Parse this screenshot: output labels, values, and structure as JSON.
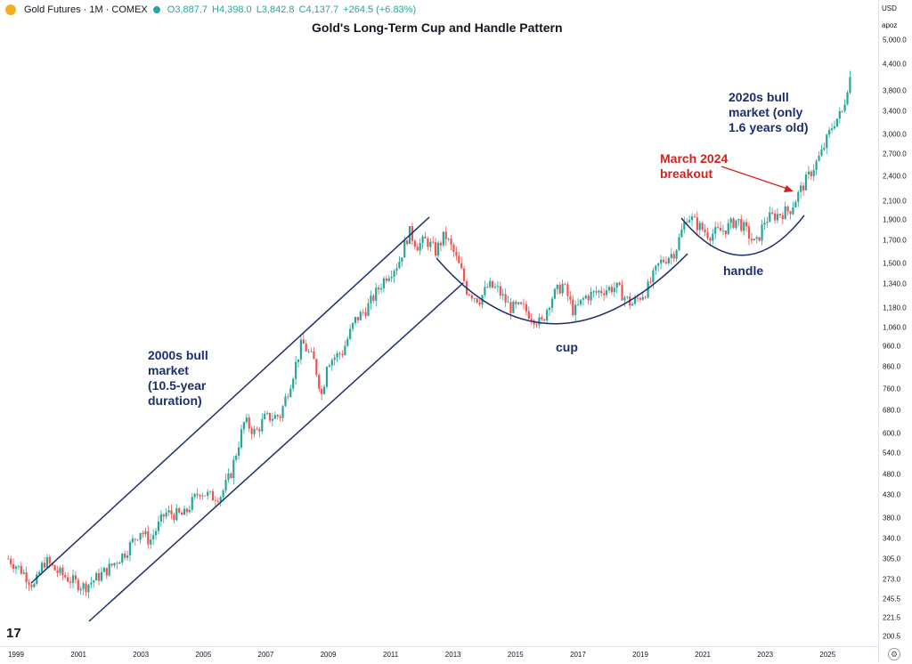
{
  "legend": {
    "symbol": "Gold Futures · 1M · COMEX",
    "open": "O3,887.7",
    "high": "H4,398.0",
    "low": "L3,842.8",
    "close": "C4,137.7",
    "change": "+264.5 (+6.83%)",
    "up_color": "#26a69a",
    "down_color": "#ef5350"
  },
  "axis": {
    "currency": "USD",
    "mode": "apoz"
  },
  "chart_data": {
    "type": "candlestick",
    "title": "Gold's Long-Term Cup and Handle Pattern",
    "scale": "log",
    "ylim": [
      195,
      5100
    ],
    "xlim": [
      1998.75,
      2026.6
    ],
    "y_ticks": [
      "5,000.0",
      "4,400.0",
      "3,800.0",
      "3,400.0",
      "3,000.0",
      "2,700.0",
      "2,400.0",
      "2,100.0",
      "1,900.0",
      "1,700.0",
      "1,500.0",
      "1,340.0",
      "1,180.0",
      "1,060.0",
      "960.0",
      "860.0",
      "760.0",
      "680.0",
      "600.0",
      "540.0",
      "480.0",
      "430.0",
      "380.0",
      "340.0",
      "305.0",
      "273.0",
      "245.5",
      "221.5",
      "200.5"
    ],
    "x_ticks": [
      "1999",
      "2001",
      "2003",
      "2005",
      "2007",
      "2009",
      "2011",
      "2013",
      "2015",
      "2017",
      "2019",
      "2021",
      "2023",
      "2025"
    ],
    "anchors": [
      [
        1998.75,
        305
      ],
      [
        1999.2,
        285
      ],
      [
        1999.6,
        262
      ],
      [
        1999.8,
        290
      ],
      [
        1999.95,
        302
      ],
      [
        2000.3,
        285
      ],
      [
        2000.9,
        268
      ],
      [
        2001.2,
        262
      ],
      [
        2001.6,
        275
      ],
      [
        2002.0,
        290
      ],
      [
        2002.5,
        315
      ],
      [
        2003.0,
        355
      ],
      [
        2003.3,
        335
      ],
      [
        2003.8,
        390
      ],
      [
        2004.4,
        385
      ],
      [
        2004.9,
        440
      ],
      [
        2005.3,
        425
      ],
      [
        2005.6,
        430
      ],
      [
        2005.9,
        480
      ],
      [
        2006.35,
        640
      ],
      [
        2006.7,
        600
      ],
      [
        2007.0,
        650
      ],
      [
        2007.5,
        660
      ],
      [
        2007.9,
        820
      ],
      [
        2008.2,
        980
      ],
      [
        2008.6,
        880
      ],
      [
        2008.85,
        730
      ],
      [
        2009.0,
        880
      ],
      [
        2009.5,
        930
      ],
      [
        2009.9,
        1100
      ],
      [
        2010.3,
        1180
      ],
      [
        2010.9,
        1400
      ],
      [
        2011.3,
        1500
      ],
      [
        2011.65,
        1780
      ],
      [
        2011.9,
        1650
      ],
      [
        2012.2,
        1700
      ],
      [
        2012.5,
        1600
      ],
      [
        2012.8,
        1750
      ],
      [
        2013.1,
        1580
      ],
      [
        2013.35,
        1420
      ],
      [
        2013.5,
        1300
      ],
      [
        2013.9,
        1230
      ],
      [
        2014.2,
        1330
      ],
      [
        2014.5,
        1300
      ],
      [
        2014.9,
        1180
      ],
      [
        2015.3,
        1180
      ],
      [
        2015.9,
        1080
      ],
      [
        2016.2,
        1240
      ],
      [
        2016.6,
        1340
      ],
      [
        2016.95,
        1150
      ],
      [
        2017.3,
        1250
      ],
      [
        2017.9,
        1300
      ],
      [
        2018.3,
        1320
      ],
      [
        2018.8,
        1200
      ],
      [
        2019.3,
        1300
      ],
      [
        2019.7,
        1500
      ],
      [
        2020.2,
        1600
      ],
      [
        2020.6,
        1950
      ],
      [
        2020.9,
        1850
      ],
      [
        2021.3,
        1750
      ],
      [
        2021.8,
        1800
      ],
      [
        2022.2,
        1900
      ],
      [
        2022.5,
        1780
      ],
      [
        2022.8,
        1650
      ],
      [
        2023.1,
        1900
      ],
      [
        2023.5,
        1950
      ],
      [
        2023.9,
        2000
      ],
      [
        2024.2,
        2200
      ],
      [
        2024.5,
        2400
      ],
      [
        2024.9,
        2700
      ],
      [
        2025.3,
        3200
      ],
      [
        2025.6,
        3400
      ],
      [
        2025.75,
        3900
      ],
      [
        2025.85,
        4137.7
      ]
    ]
  },
  "annotations": {
    "bull_2000s": [
      "2000s bull",
      "market",
      "(10.5-year",
      "duration)"
    ],
    "bull_2020s": [
      "2020s bull",
      "market (only",
      "1.6 years old)"
    ],
    "breakout": [
      "March 2024",
      "breakout"
    ],
    "cup": "cup",
    "handle": "handle"
  },
  "branding": {
    "logo": "17"
  }
}
